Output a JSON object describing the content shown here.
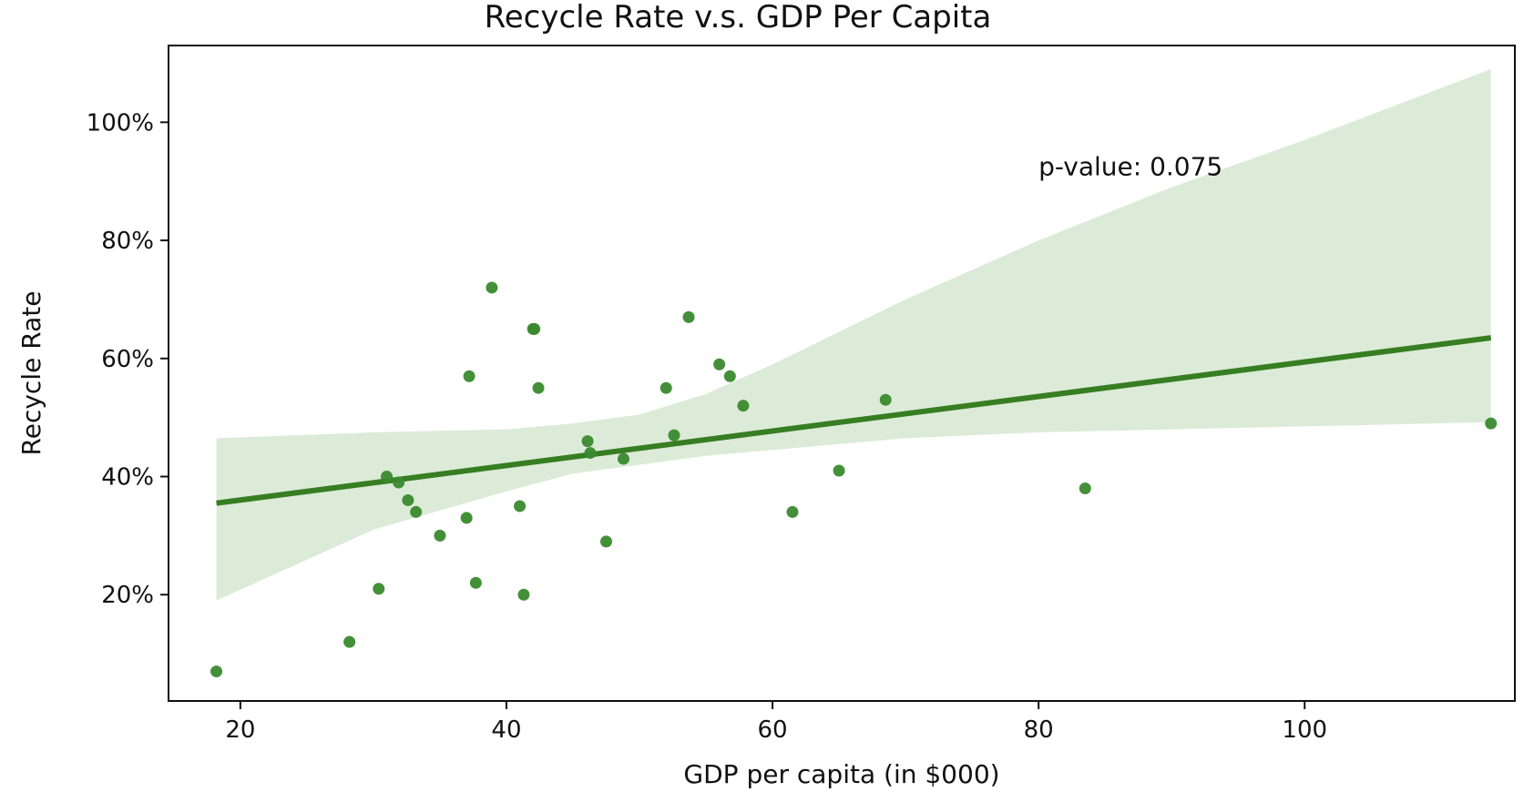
{
  "chart_data": {
    "type": "scatter",
    "title": "Recycle Rate v.s. GDP Per Capita",
    "xlabel": "GDP per capita (in $000)",
    "ylabel": "Recycle Rate",
    "xlim": [
      14.6,
      115.8
    ],
    "ylim": [
      2,
      113
    ],
    "xticks": [
      20,
      40,
      60,
      80,
      100
    ],
    "yticks": [
      20,
      40,
      60,
      80,
      100
    ],
    "ytick_format": "percent",
    "grid": false,
    "legend": "none",
    "points": [
      {
        "x": 18.2,
        "y": 7
      },
      {
        "x": 28.2,
        "y": 12
      },
      {
        "x": 30.4,
        "y": 21
      },
      {
        "x": 31.0,
        "y": 40
      },
      {
        "x": 31.9,
        "y": 39
      },
      {
        "x": 32.6,
        "y": 36
      },
      {
        "x": 33.2,
        "y": 34
      },
      {
        "x": 35.0,
        "y": 30
      },
      {
        "x": 37.0,
        "y": 33
      },
      {
        "x": 37.2,
        "y": 57
      },
      {
        "x": 37.7,
        "y": 22
      },
      {
        "x": 38.9,
        "y": 72
      },
      {
        "x": 41.0,
        "y": 35
      },
      {
        "x": 41.3,
        "y": 20
      },
      {
        "x": 42.0,
        "y": 65
      },
      {
        "x": 42.1,
        "y": 65
      },
      {
        "x": 42.4,
        "y": 55
      },
      {
        "x": 46.1,
        "y": 46
      },
      {
        "x": 46.3,
        "y": 44
      },
      {
        "x": 47.5,
        "y": 29
      },
      {
        "x": 48.8,
        "y": 43
      },
      {
        "x": 52.0,
        "y": 55
      },
      {
        "x": 52.6,
        "y": 47
      },
      {
        "x": 53.7,
        "y": 67
      },
      {
        "x": 56.0,
        "y": 59
      },
      {
        "x": 56.8,
        "y": 57
      },
      {
        "x": 57.8,
        "y": 52
      },
      {
        "x": 61.5,
        "y": 34
      },
      {
        "x": 65.0,
        "y": 41
      },
      {
        "x": 68.5,
        "y": 53
      },
      {
        "x": 83.5,
        "y": 38
      },
      {
        "x": 114.0,
        "y": 49
      }
    ],
    "regression": {
      "x": [
        18.2,
        114.0
      ],
      "y": [
        35.5,
        63.5
      ]
    },
    "confidence_band": {
      "x": [
        18.2,
        30,
        40,
        45,
        50,
        55,
        60,
        70,
        80,
        90,
        100,
        114.0
      ],
      "upper": [
        46.5,
        47.5,
        48.0,
        49.0,
        50.5,
        54.0,
        59.0,
        70.0,
        80.0,
        89.0,
        97.0,
        109.0
      ],
      "lower": [
        19.0,
        31.0,
        37.5,
        40.5,
        42.0,
        43.5,
        44.5,
        46.5,
        47.5,
        48.0,
        48.5,
        49.2
      ]
    },
    "annotation": "p-value: 0.075",
    "annotation_pos": {
      "x": 80,
      "y": 91
    },
    "colors": {
      "point": "#3a8a2e",
      "line": "#377e22",
      "band": "#dcebd8",
      "axes": "#111111"
    }
  }
}
